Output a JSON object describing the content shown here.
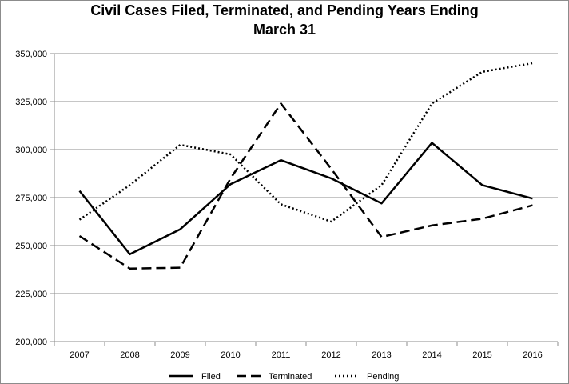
{
  "chart_data": {
    "type": "line",
    "title_line1": "Civil Cases Filed, Terminated, and Pending Years Ending",
    "title_line2": "March 31",
    "categories": [
      "2007",
      "2008",
      "2009",
      "2010",
      "2011",
      "2012",
      "2013",
      "2014",
      "2015",
      "2016"
    ],
    "y_ticks": [
      "200,000",
      "225,000",
      "250,000",
      "275,000",
      "300,000",
      "325,000",
      "350,000"
    ],
    "ylim": [
      200000,
      350000
    ],
    "grid": true,
    "legend_position": "bottom",
    "series": [
      {
        "name": "Filed",
        "style": "solid",
        "values": [
          278500,
          245500,
          258500,
          282000,
          294500,
          285000,
          272000,
          303500,
          281500,
          274500
        ]
      },
      {
        "name": "Terminated",
        "style": "dashed",
        "values": [
          255000,
          238000,
          238500,
          285000,
          324000,
          290000,
          254500,
          260500,
          264000,
          271000
        ]
      },
      {
        "name": "Pending",
        "style": "dotted",
        "values": [
          263500,
          281500,
          302500,
          297500,
          271500,
          262500,
          281500,
          324000,
          340500,
          345000
        ]
      }
    ]
  }
}
